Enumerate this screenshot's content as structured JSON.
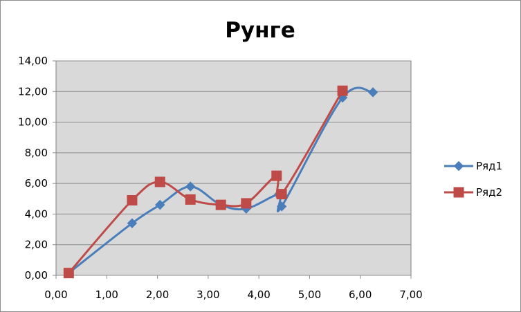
{
  "chart_data": {
    "type": "scatter",
    "title": "Рунге",
    "xlabel": "",
    "ylabel": "",
    "xlim": [
      0,
      7
    ],
    "ylim": [
      0,
      14
    ],
    "x_ticks": [
      "0,00",
      "1,00",
      "2,00",
      "3,00",
      "4,00",
      "5,00",
      "6,00",
      "7,00"
    ],
    "y_ticks": [
      "0,00",
      "2,00",
      "4,00",
      "6,00",
      "8,00",
      "10,00",
      "12,00",
      "14,00"
    ],
    "grid": "horizontal",
    "smooth_lines": true,
    "legend_position": "right",
    "series": [
      {
        "name": "Ряд1",
        "color": "#4a7ebb",
        "marker": "diamond",
        "points": [
          [
            0.25,
            0.15
          ],
          [
            1.5,
            3.4
          ],
          [
            2.05,
            4.6
          ],
          [
            2.65,
            5.8
          ],
          [
            3.25,
            4.6
          ],
          [
            3.75,
            4.35
          ],
          [
            4.4,
            5.3
          ],
          [
            4.45,
            4.5
          ],
          [
            5.65,
            11.6
          ],
          [
            6.25,
            11.95
          ]
        ]
      },
      {
        "name": "Ряд2",
        "color": "#be4b48",
        "marker": "square",
        "points": [
          [
            0.25,
            0.15
          ],
          [
            1.5,
            4.9
          ],
          [
            2.05,
            6.1
          ],
          [
            2.65,
            4.95
          ],
          [
            3.25,
            4.6
          ],
          [
            3.75,
            4.7
          ],
          [
            4.35,
            6.5
          ],
          [
            4.45,
            5.3
          ],
          [
            5.65,
            12.05
          ]
        ]
      }
    ]
  }
}
